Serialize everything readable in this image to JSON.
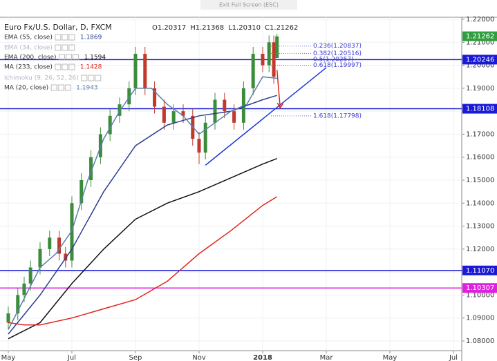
{
  "chart_data": {
    "type": "candlestick",
    "banner": "Exit Full Screen (ESC)",
    "title": "Euro Fx/U.S. Dollar, D, FXCM",
    "ohlc_labels": [
      "O1.20317",
      "H1.21368",
      "L1.20310",
      "C1.21262"
    ],
    "xlim": [
      -0.26,
      14.26
    ],
    "xticks": [
      {
        "value": 0,
        "label": "May"
      },
      {
        "value": 2,
        "label": "Jul"
      },
      {
        "value": 4,
        "label": "Sep"
      },
      {
        "value": 6,
        "label": "Nov"
      },
      {
        "value": 8,
        "label": "2018"
      },
      {
        "value": 10,
        "label": "Mar"
      },
      {
        "value": 12,
        "label": "May"
      },
      {
        "value": 14,
        "label": "Jul"
      }
    ],
    "ylim": [
      1.0758,
      1.2209
    ],
    "yticks": [
      {
        "value": 1.08,
        "label": "1.08000"
      },
      {
        "value": 1.09,
        "label": "1.09000"
      },
      {
        "value": 1.1,
        "label": "1.10000"
      },
      {
        "value": 1.11,
        "label": "1.11000"
      },
      {
        "value": 1.12,
        "label": "1.12000"
      },
      {
        "value": 1.13,
        "label": "1.13000"
      },
      {
        "value": 1.14,
        "label": "1.14000"
      },
      {
        "value": 1.15,
        "label": "1.15000"
      },
      {
        "value": 1.16,
        "label": "1.16000"
      },
      {
        "value": 1.17,
        "label": "1.17000"
      },
      {
        "value": 1.18,
        "label": "1.18000"
      },
      {
        "value": 1.19,
        "label": "1.19000"
      },
      {
        "value": 1.2,
        "label": "1.20000"
      },
      {
        "value": 1.21,
        "label": "1.21000"
      },
      {
        "value": 1.22,
        "label": "1.22000"
      }
    ],
    "grid": true,
    "up_color": "#3c8c3c",
    "down_color": "#c0392b",
    "candles": {
      "x": [
        0,
        0.3,
        0.5,
        0.7,
        1,
        1.3,
        1.6,
        1.8,
        2,
        2.3,
        2.6,
        2.9,
        3.2,
        3.5,
        3.8,
        4,
        4.3,
        4.6,
        4.9,
        5.2,
        5.5,
        5.8,
        6,
        6.2,
        6.5,
        6.8,
        7.1,
        7.4,
        7.7,
        8,
        8.2,
        8.35,
        8.45
      ],
      "open": [
        1.088,
        1.092,
        1.1,
        1.105,
        1.112,
        1.12,
        1.125,
        1.118,
        1.115,
        1.14,
        1.15,
        1.16,
        1.17,
        1.178,
        1.183,
        1.19,
        1.205,
        1.19,
        1.182,
        1.175,
        1.18,
        1.178,
        1.168,
        1.162,
        1.175,
        1.185,
        1.18,
        1.175,
        1.19,
        1.205,
        1.2,
        1.21,
        1.2032
      ],
      "high": [
        1.095,
        1.103,
        1.108,
        1.115,
        1.123,
        1.128,
        1.128,
        1.121,
        1.143,
        1.153,
        1.163,
        1.173,
        1.181,
        1.186,
        1.193,
        1.208,
        1.208,
        1.193,
        1.185,
        1.183,
        1.183,
        1.181,
        1.171,
        1.178,
        1.188,
        1.188,
        1.183,
        1.193,
        1.208,
        1.208,
        1.213,
        1.213,
        1.2137
      ],
      "low": [
        1.085,
        1.089,
        1.097,
        1.102,
        1.109,
        1.117,
        1.115,
        1.112,
        1.112,
        1.137,
        1.147,
        1.157,
        1.167,
        1.175,
        1.18,
        1.187,
        1.187,
        1.179,
        1.172,
        1.172,
        1.175,
        1.165,
        1.157,
        1.159,
        1.172,
        1.177,
        1.172,
        1.172,
        1.187,
        1.197,
        1.197,
        1.192,
        1.2031
      ],
      "close": [
        1.092,
        1.1,
        1.105,
        1.112,
        1.12,
        1.125,
        1.118,
        1.115,
        1.14,
        1.15,
        1.16,
        1.17,
        1.178,
        1.183,
        1.19,
        1.205,
        1.19,
        1.182,
        1.175,
        1.18,
        1.178,
        1.168,
        1.162,
        1.175,
        1.185,
        1.18,
        1.175,
        1.19,
        1.205,
        1.2,
        1.21,
        1.195,
        1.2126
      ]
    },
    "series": [
      {
        "name": "EMA (55, close)",
        "value_label": "1.1869",
        "color": "#2b3f8f",
        "x": [
          0,
          1,
          2,
          3,
          4,
          5,
          6,
          7,
          8,
          8.45
        ],
        "values": [
          1.083,
          1.1,
          1.12,
          1.145,
          1.165,
          1.174,
          1.178,
          1.18,
          1.185,
          1.1869
        ]
      },
      {
        "name": "EMA (34, close)",
        "color": "#b0b8c8",
        "x": [],
        "values": []
      },
      {
        "name": "EMA (200, close)",
        "value_label": "1.1594",
        "color": "#111111",
        "x": [
          0,
          1,
          2,
          3,
          4,
          5,
          6,
          7,
          8,
          8.45
        ],
        "values": [
          1.081,
          1.088,
          1.105,
          1.12,
          1.133,
          1.14,
          1.145,
          1.151,
          1.157,
          1.1594
        ]
      },
      {
        "name": "MA (233, close)",
        "value_label": "1.1428",
        "color": "#e0241c",
        "x": [
          0,
          0.5,
          1,
          2,
          3,
          4,
          5,
          6,
          7,
          8,
          8.45
        ],
        "values": [
          1.088,
          1.087,
          1.087,
          1.09,
          1.094,
          1.098,
          1.106,
          1.118,
          1.128,
          1.139,
          1.1428
        ]
      },
      {
        "name": "Ichimoku (9, 26, 52, 26)",
        "color": "#b0b8c8",
        "x": [],
        "values": []
      },
      {
        "name": "MA (20, close)",
        "value_label": "1.1943",
        "color": "#5b7fa8",
        "x": [
          0,
          1,
          1.5,
          2,
          2.5,
          3,
          3.5,
          4,
          4.5,
          5,
          5.5,
          6,
          6.5,
          7,
          7.5,
          8,
          8.45
        ],
        "values": [
          1.085,
          1.112,
          1.118,
          1.128,
          1.15,
          1.168,
          1.18,
          1.19,
          1.19,
          1.183,
          1.178,
          1.17,
          1.175,
          1.18,
          1.183,
          1.195,
          1.1943
        ]
      }
    ],
    "levels": [
      {
        "value": 1.21262,
        "label": "1.21262",
        "color": "#2e9e3e",
        "line": false
      },
      {
        "value": 1.20246,
        "label": "1.20246",
        "color": "#1a1ad6",
        "line": true
      },
      {
        "value": 1.18108,
        "label": "1.18108",
        "color": "#1a1ad6",
        "line": true
      },
      {
        "value": 1.1107,
        "label": "1.11070",
        "color": "#1a1ad6",
        "line": true
      },
      {
        "value": 1.10307,
        "label": "1.10307",
        "color": "#e020e0",
        "line": true
      }
    ],
    "fib": [
      {
        "label": "0.236(1.20837)",
        "value": 1.20837
      },
      {
        "label": "0.382(1.20516)",
        "value": 1.20516
      },
      {
        "label": "0.5(1.20257)",
        "value": 1.20257
      },
      {
        "label": "0.618(1.19997)",
        "value": 1.19997
      },
      {
        "label": "1.618(1.17798)",
        "value": 1.17798
      }
    ],
    "trendline": {
      "color": "#1a3ad6",
      "x": [
        6.2,
        10.0
      ],
      "values": [
        1.1565,
        1.199
      ]
    },
    "arrow": {
      "color": "#e0241c",
      "x": [
        8.45,
        8.55
      ],
      "values": [
        1.198,
        1.1815
      ]
    }
  }
}
